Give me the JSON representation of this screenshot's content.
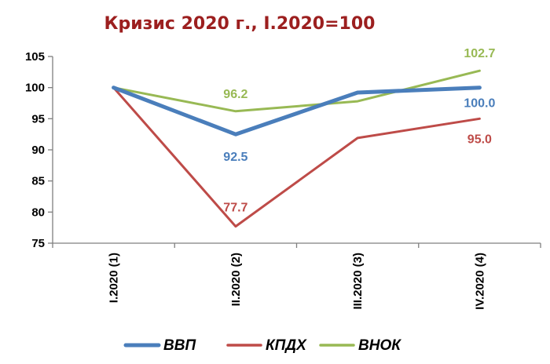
{
  "chart_data": {
    "type": "line",
    "title": "Кризис 2020 г., I.2020=100",
    "categories": [
      "I.2020 (1)",
      "II.2020 (2)",
      "III.2020 (3)",
      "IV.2020 (4)"
    ],
    "ylim": [
      75,
      105
    ],
    "yticks": [
      75,
      80,
      85,
      90,
      95,
      100,
      105
    ],
    "grid": false,
    "legend_position": "bottom",
    "series": [
      {
        "name": "ВВП",
        "color": "#4a7ebb",
        "values": [
          100,
          92.5,
          99.2,
          100.0
        ],
        "labels": [
          null,
          "92.5",
          null,
          "100.0"
        ]
      },
      {
        "name": "КПДХ",
        "color": "#be4b48",
        "values": [
          100,
          77.7,
          91.9,
          95.0
        ],
        "labels": [
          null,
          "77.7",
          null,
          "95.0"
        ]
      },
      {
        "name": "ВНОК",
        "color": "#98b954",
        "values": [
          100,
          96.2,
          97.8,
          102.7
        ],
        "labels": [
          null,
          "96.2",
          null,
          "102.7"
        ]
      }
    ]
  }
}
